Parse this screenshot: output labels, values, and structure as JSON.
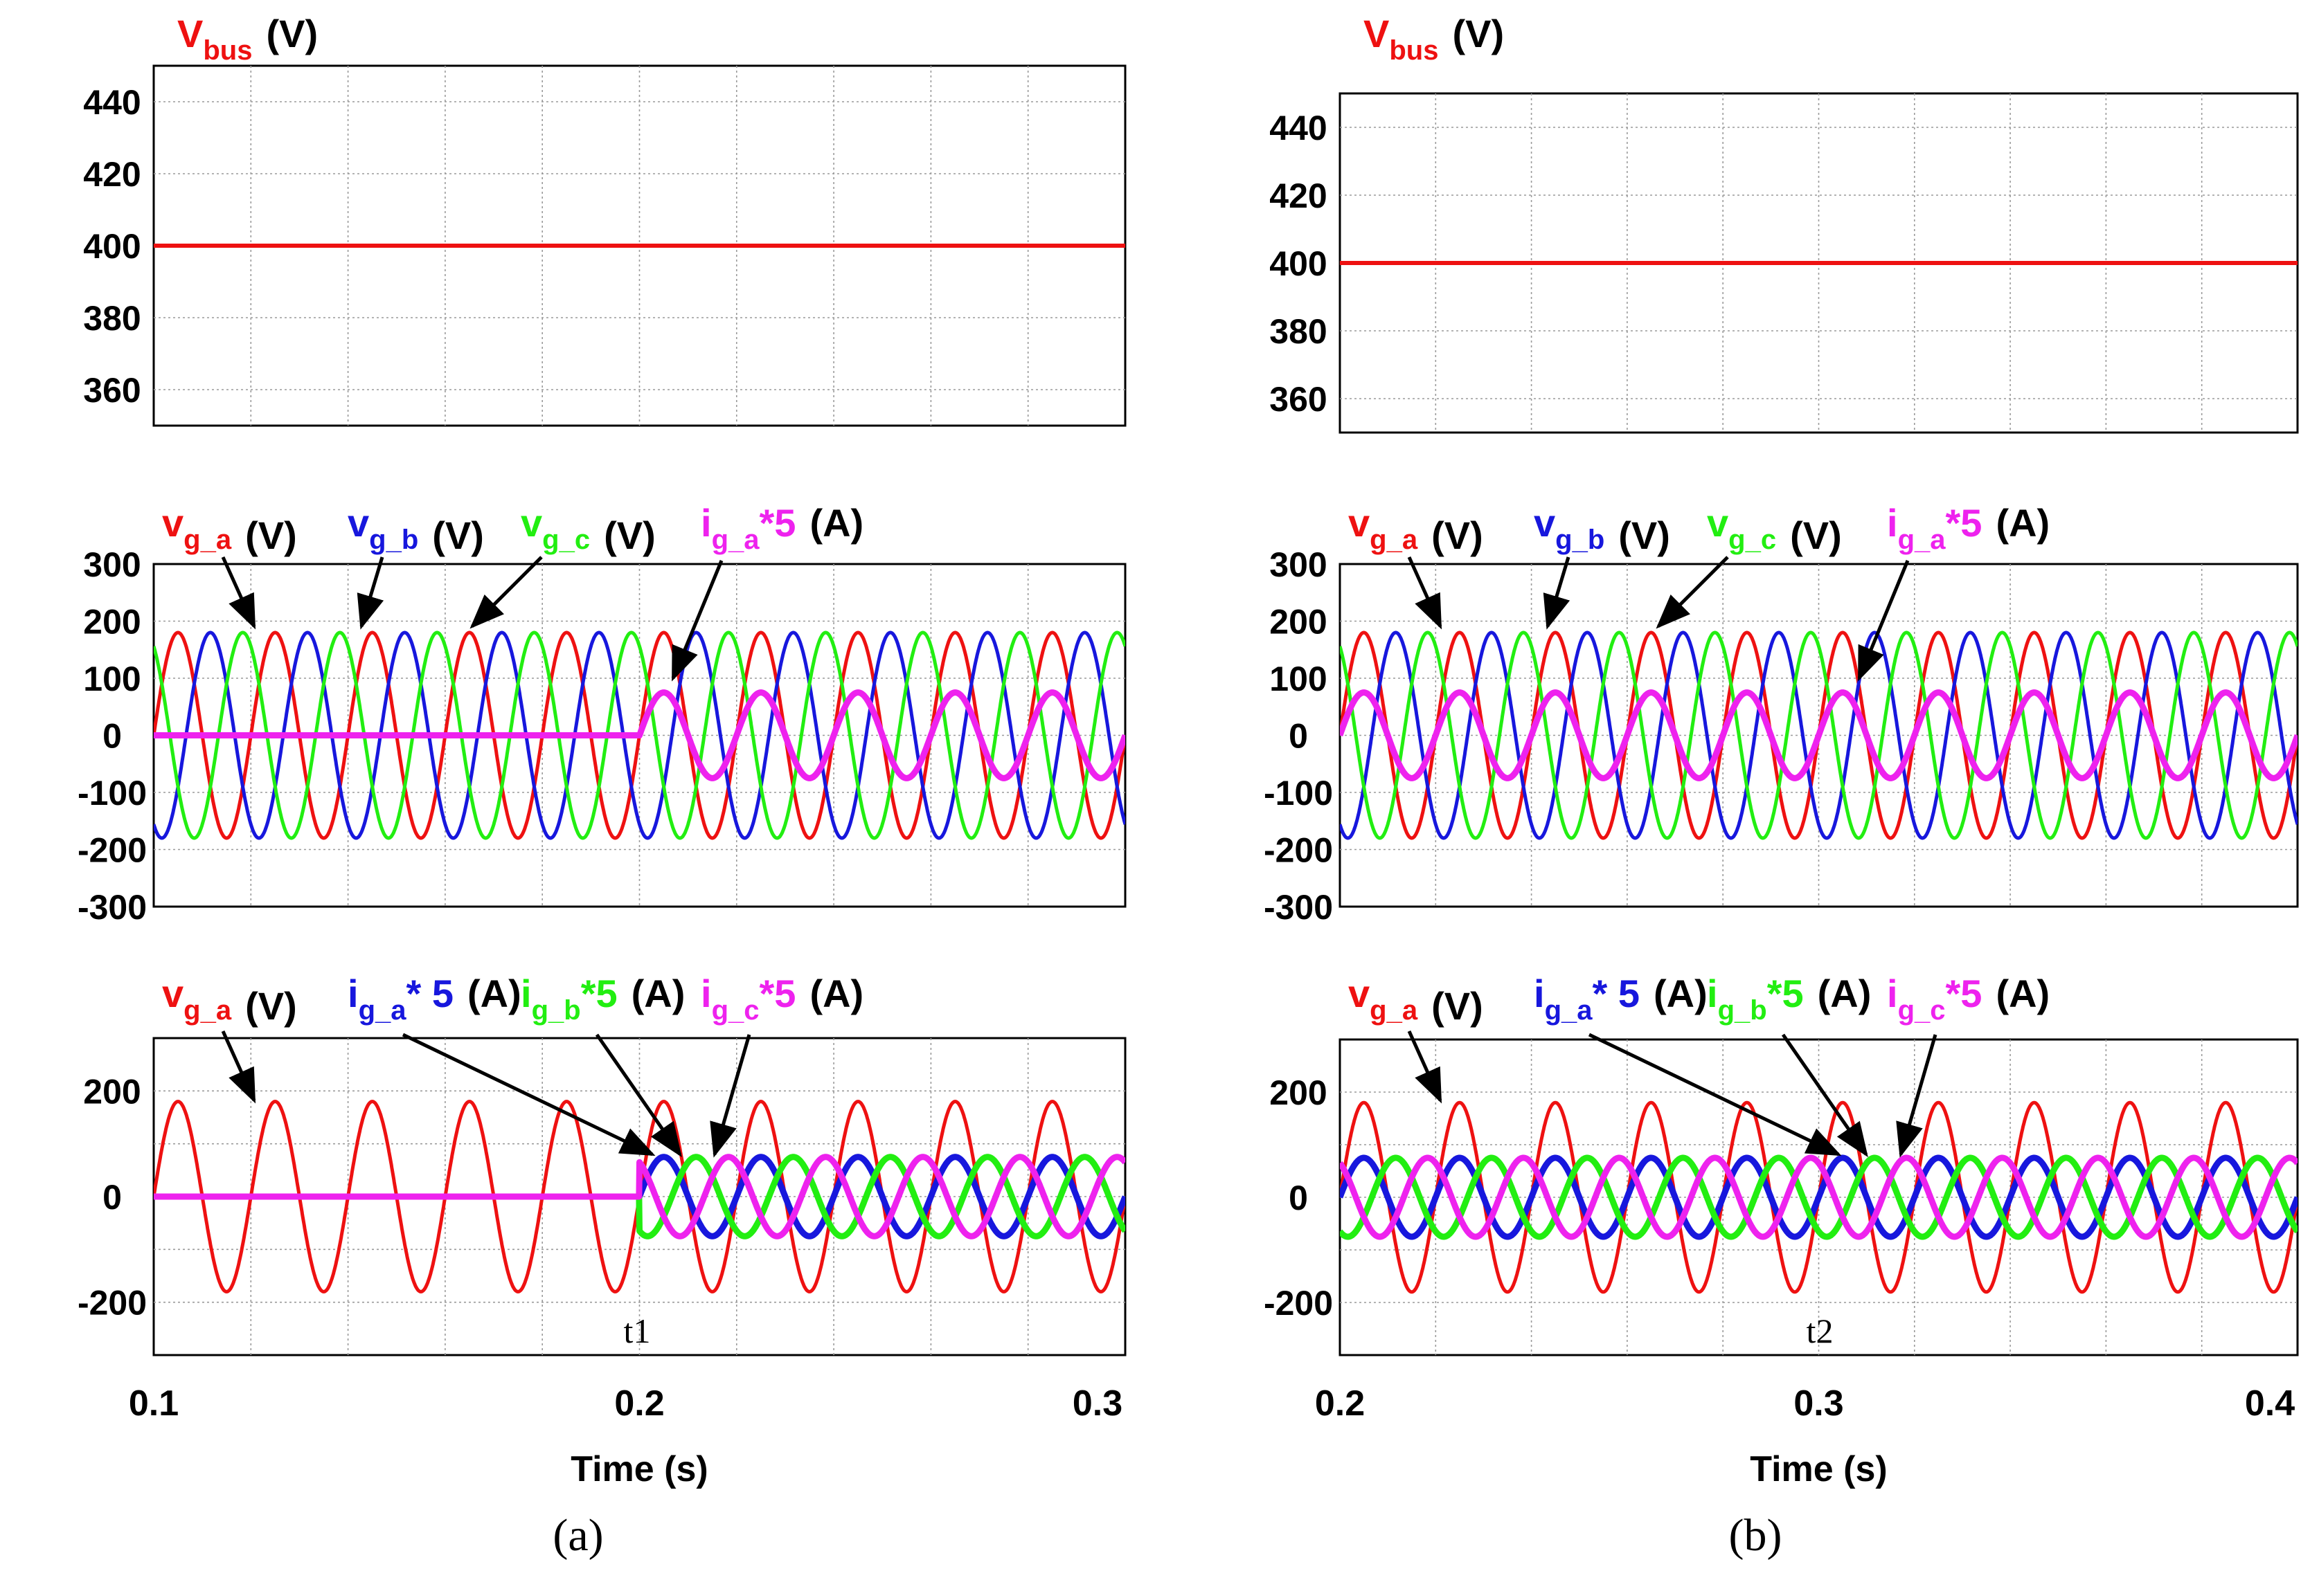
{
  "colors": {
    "red": "#ee1111",
    "blue": "#1717dd",
    "green": "#22ee11",
    "magenta": "#ee22ee",
    "black": "#000000",
    "grid": "#9a9a9a"
  },
  "captions": [
    "(a)",
    "(b)"
  ],
  "xlabel": "Time (s)",
  "markers": [
    "t1",
    "t2"
  ],
  "labels": {
    "vbus": {
      "main": "V",
      "sub": "bus",
      "unit": "(V)"
    },
    "v_row": [
      {
        "main": "v",
        "sub": "g_a",
        "tail": "",
        "unit": "(V)",
        "color": "red"
      },
      {
        "main": "v",
        "sub": "g_b",
        "tail": "",
        "unit": "(V)",
        "color": "blue"
      },
      {
        "main": "v",
        "sub": "g_c",
        "tail": "",
        "unit": "(V)",
        "color": "green"
      },
      {
        "main": "i",
        "sub": "g_a",
        "tail": "*5",
        "unit": "(A)",
        "color": "magenta"
      }
    ],
    "i_row": [
      {
        "main": "v",
        "sub": "g_a",
        "tail": "",
        "unit": "(V)",
        "color": "red"
      },
      {
        "main": "i",
        "sub": "g_a",
        "tail": "* 5",
        "unit": "(A)",
        "color": "blue"
      },
      {
        "main": "i",
        "sub": "g_b",
        "tail": "*5",
        "unit": "(A)",
        "color": "green"
      },
      {
        "main": "i",
        "sub": "g_c",
        "tail": "*5",
        "unit": "(A)",
        "color": "magenta"
      }
    ]
  },
  "chart_data": [
    {
      "type": "line",
      "panel": "(a)",
      "row": "Vbus",
      "xlim": [
        0.1,
        0.3
      ],
      "ylim": [
        350,
        450
      ],
      "yticks": [
        360,
        380,
        400,
        420,
        440
      ],
      "grid": true,
      "series": [
        {
          "name": "Vbus",
          "color": "red",
          "x": [
            0.1,
            0.3
          ],
          "y": [
            400,
            400
          ]
        }
      ]
    },
    {
      "type": "line",
      "panel": "(a)",
      "row": "grid voltages and phase-a current",
      "xlim": [
        0.1,
        0.3
      ],
      "ylim": [
        -300,
        300
      ],
      "yticks": [
        300,
        200,
        100,
        0,
        -100,
        -200,
        -300
      ],
      "grid": true,
      "frequency_hz": 50,
      "event_time": 0.2,
      "series": [
        {
          "name": "v_g_a",
          "color": "red",
          "amplitude": 180,
          "phase_deg": 0,
          "start": 0.1
        },
        {
          "name": "v_g_b",
          "color": "blue",
          "amplitude": 180,
          "phase_deg": -120,
          "start": 0.1
        },
        {
          "name": "v_g_c",
          "color": "green",
          "amplitude": 180,
          "phase_deg": 120,
          "start": 0.1
        },
        {
          "name": "i_g_a*5",
          "color": "magenta",
          "amplitude": 75,
          "phase_deg": 0,
          "start": 0.2
        }
      ]
    },
    {
      "type": "line",
      "panel": "(a)",
      "row": "phase-a voltage and grid currents",
      "xlim": [
        0.1,
        0.3
      ],
      "ylim": [
        -300,
        300
      ],
      "yticks": [
        200,
        0,
        -200
      ],
      "grid": true,
      "frequency_hz": 50,
      "event_time": 0.2,
      "series": [
        {
          "name": "v_g_a",
          "color": "red",
          "amplitude": 180,
          "phase_deg": 0,
          "start": 0.1
        },
        {
          "name": "i_g_a*5",
          "color": "blue",
          "amplitude": 75,
          "phase_deg": 0,
          "start": 0.2
        },
        {
          "name": "i_g_b*5",
          "color": "green",
          "amplitude": 75,
          "phase_deg": -120,
          "start": 0.2
        },
        {
          "name": "i_g_c*5",
          "color": "magenta",
          "amplitude": 75,
          "phase_deg": 120,
          "start": 0.2
        }
      ]
    },
    {
      "type": "line",
      "panel": "(b)",
      "row": "Vbus",
      "xlim": [
        0.2,
        0.4
      ],
      "ylim": [
        350,
        450
      ],
      "yticks": [
        360,
        380,
        400,
        420,
        440
      ],
      "grid": true,
      "series": [
        {
          "name": "Vbus",
          "color": "red",
          "x": [
            0.2,
            0.4
          ],
          "y": [
            400,
            400
          ]
        }
      ]
    },
    {
      "type": "line",
      "panel": "(b)",
      "row": "grid voltages and phase-a current",
      "xlim": [
        0.2,
        0.4
      ],
      "ylim": [
        -300,
        300
      ],
      "yticks": [
        300,
        200,
        100,
        0,
        -100,
        -200,
        -300
      ],
      "grid": true,
      "frequency_hz": 50,
      "event_time": 0.3,
      "series": [
        {
          "name": "v_g_a",
          "color": "red",
          "amplitude": 180,
          "phase_deg": 0,
          "start": 0.2
        },
        {
          "name": "v_g_b",
          "color": "blue",
          "amplitude": 180,
          "phase_deg": -120,
          "start": 0.2
        },
        {
          "name": "v_g_c",
          "color": "green",
          "amplitude": 180,
          "phase_deg": 120,
          "start": 0.2
        },
        {
          "name": "i_g_a*5",
          "color": "magenta",
          "amplitude": 75,
          "phase_deg": 0,
          "start": 0.2
        }
      ]
    },
    {
      "type": "line",
      "panel": "(b)",
      "row": "phase-a voltage and grid currents",
      "xlim": [
        0.2,
        0.4
      ],
      "ylim": [
        -300,
        300
      ],
      "yticks": [
        200,
        0,
        -200
      ],
      "grid": true,
      "frequency_hz": 50,
      "event_time": 0.3,
      "series": [
        {
          "name": "v_g_a",
          "color": "red",
          "amplitude": 180,
          "phase_deg": 0,
          "start": 0.2
        },
        {
          "name": "i_g_a*5",
          "color": "blue",
          "amplitude": 75,
          "phase_deg": 0,
          "start": 0.2
        },
        {
          "name": "i_g_b*5",
          "color": "green",
          "amplitude": 75,
          "phase_deg": -120,
          "start": 0.2
        },
        {
          "name": "i_g_c*5",
          "color": "magenta",
          "amplitude": 75,
          "phase_deg": 120,
          "start": 0.2
        }
      ]
    }
  ],
  "x_axis": [
    {
      "ticks": [
        "0.1",
        "0.2",
        "0.3"
      ]
    },
    {
      "ticks": [
        "0.2",
        "0.3",
        "0.4"
      ]
    }
  ]
}
